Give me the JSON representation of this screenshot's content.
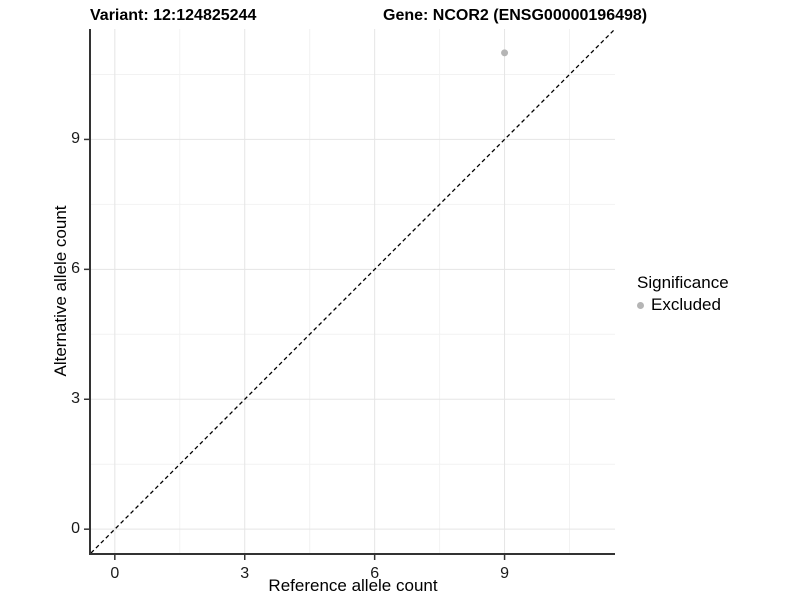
{
  "title": {
    "left": "Variant: 12:124825244",
    "right": "Gene: NCOR2 (ENSG00000196498)"
  },
  "chart_data": {
    "type": "scatter",
    "title": "Variant: 12:124825244   Gene: NCOR2 (ENSG00000196498)",
    "xlabel": "Reference allele count",
    "ylabel": "Alternative allele count",
    "xlim": [
      -0.55,
      11.55
    ],
    "ylim": [
      -0.55,
      11.55
    ],
    "x_major_ticks": [
      0,
      3,
      6,
      9
    ],
    "y_major_ticks": [
      0,
      3,
      6,
      9
    ],
    "x_minor_gridlines": [
      1.5,
      4.5,
      7.5,
      10.5
    ],
    "y_minor_gridlines": [
      1.5,
      4.5,
      7.5,
      10.5
    ],
    "grid": "major+minor",
    "series": [
      {
        "name": "Excluded",
        "color": "#b5b5b5",
        "points": [
          {
            "x": 9,
            "y": 11
          }
        ]
      }
    ],
    "reference_line": {
      "slope": 1,
      "intercept": 0,
      "style": "dashed",
      "color": "#000000"
    },
    "legend": {
      "title": "Significance",
      "position": "right",
      "entries": [
        {
          "label": "Excluded",
          "color": "#b5b5b5"
        }
      ]
    },
    "colors": {
      "background": "#ffffff",
      "axis_line": "#333333",
      "grid_major": "#e5e5e5",
      "grid_minor": "#f2f2f2",
      "tick_mark": "#333333",
      "text": "#000000"
    }
  }
}
